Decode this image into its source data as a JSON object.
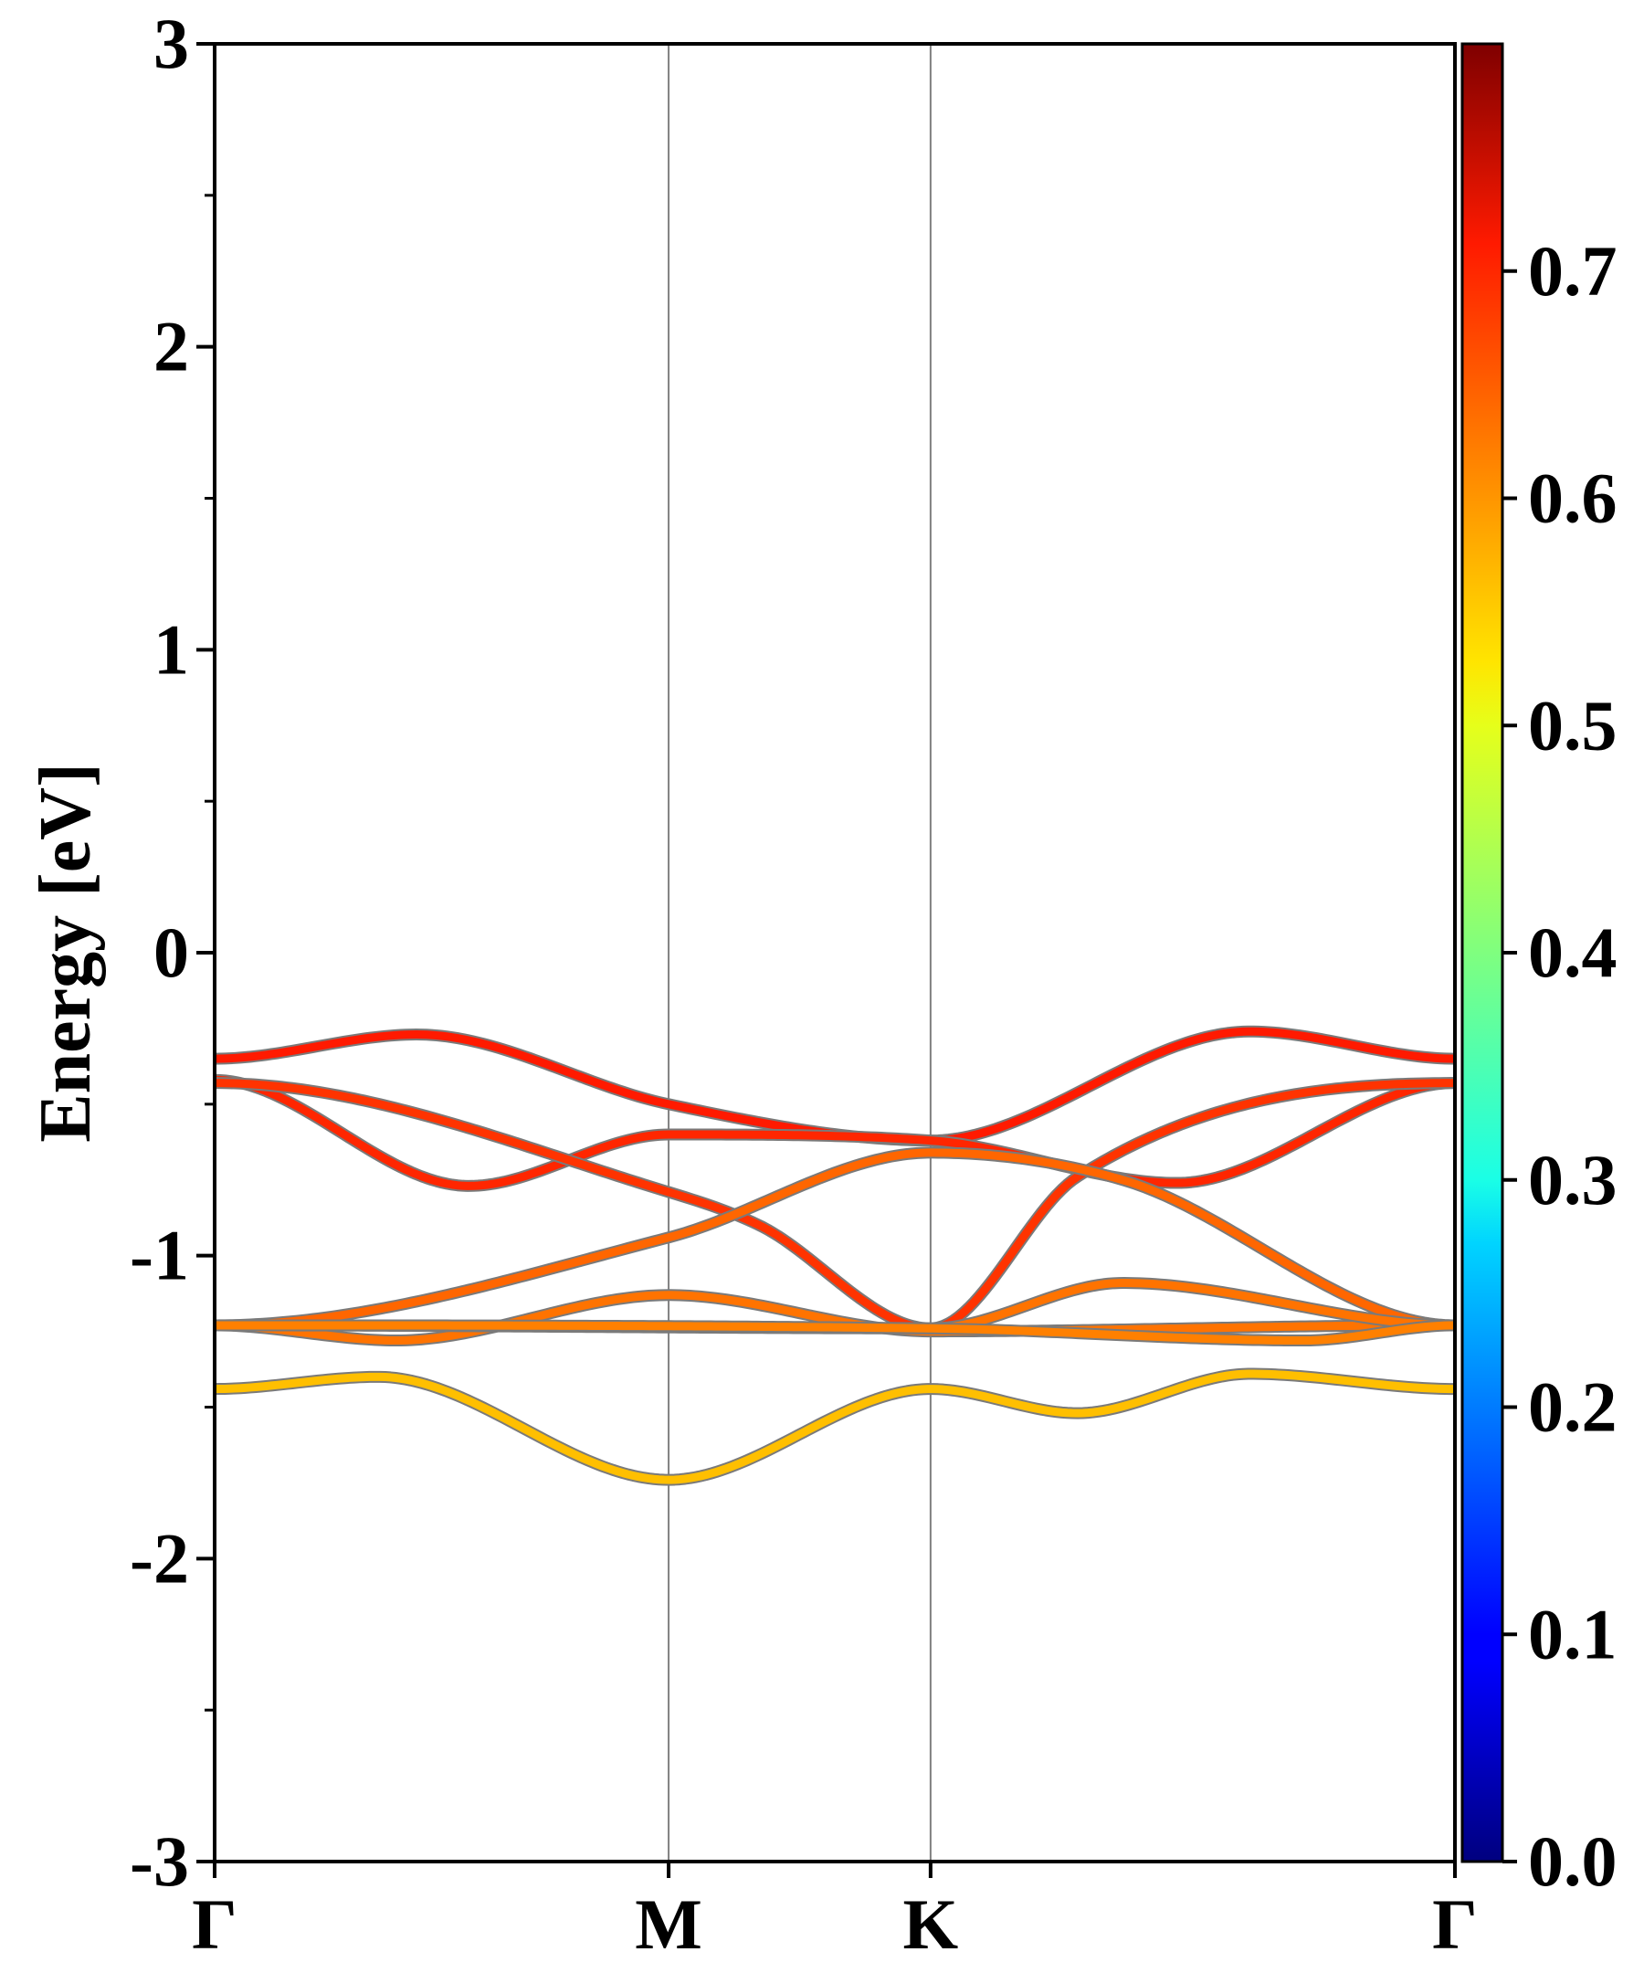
{
  "chart_data": {
    "type": "line",
    "subtype": "band-structure",
    "title": "",
    "ylabel": "Energy [eV]",
    "xlabel": "",
    "ylim": [
      -3,
      3
    ],
    "yticks": [
      -3,
      -2,
      -1,
      0,
      1,
      2,
      3
    ],
    "grid": false,
    "kpoints": [
      {
        "label": "Γ",
        "position": 0.0
      },
      {
        "label": "M",
        "position": 1.0
      },
      {
        "label": "K",
        "position": 1.577
      },
      {
        "label": "Γ",
        "position": 2.732
      }
    ],
    "colorbar": {
      "colormap": "jet",
      "range": [
        0.0,
        0.8
      ],
      "ticks": [
        0.0,
        0.1,
        0.2,
        0.3,
        0.4,
        0.5,
        0.6,
        0.7
      ]
    },
    "series": [
      {
        "x": [
          0.0,
          0.446,
          1.0,
          1.577,
          2.28,
          2.732
        ],
        "y": [
          -0.35,
          -0.27,
          -0.5,
          -0.62,
          -0.26,
          -0.35
        ],
        "weight": 0.68
      },
      {
        "x": [
          0.0,
          0.56,
          1.0,
          1.577,
          2.12,
          2.732
        ],
        "y": [
          -0.42,
          -0.77,
          -0.6,
          -0.62,
          -0.76,
          -0.43
        ],
        "weight": 0.67
      },
      {
        "x": [
          0.0,
          1.0,
          1.2,
          1.577,
          1.9,
          2.732
        ],
        "y": [
          -0.43,
          -0.79,
          -0.9,
          -1.24,
          -0.74,
          -0.43
        ],
        "weight": 0.66
      },
      {
        "x": [
          0.0,
          1.0,
          1.577,
          2.0,
          2.732
        ],
        "y": [
          -1.23,
          -0.94,
          -0.66,
          -0.75,
          -1.23
        ],
        "weight": 0.62
      },
      {
        "x": [
          0.0,
          0.4,
          1.0,
          1.577,
          2.7,
          2.732
        ],
        "y": [
          -1.23,
          -1.28,
          -1.13,
          -1.25,
          -1.23,
          -1.23
        ],
        "weight": 0.61
      },
      {
        "x": [
          0.0,
          1.577,
          2.0,
          2.732
        ],
        "y": [
          -1.23,
          -1.24,
          -1.09,
          -1.23
        ],
        "weight": 0.61
      },
      {
        "x": [
          0.0,
          1.577,
          2.4,
          2.732
        ],
        "y": [
          -1.23,
          -1.24,
          -1.28,
          -1.23
        ],
        "weight": 0.6
      },
      {
        "x": [
          0.0,
          0.36,
          1.0,
          1.577,
          1.9,
          2.28,
          2.732
        ],
        "y": [
          -1.44,
          -1.4,
          -1.74,
          -1.44,
          -1.52,
          -1.39,
          -1.44
        ],
        "weight": 0.55
      }
    ]
  }
}
